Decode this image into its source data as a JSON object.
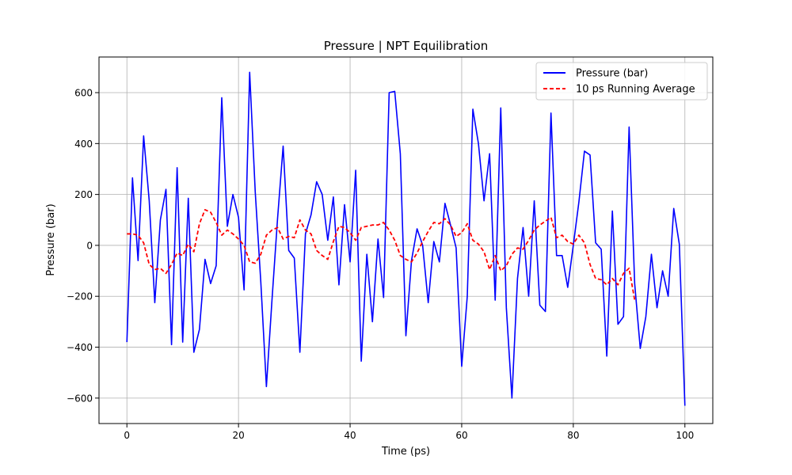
{
  "chart_data": {
    "type": "line",
    "title": "Pressure | NPT Equilibration",
    "xlabel": "Time (ps)",
    "ylabel": "Pressure (bar)",
    "xlim": [
      -5,
      105
    ],
    "ylim": [
      -700,
      740
    ],
    "xticks": [
      0,
      20,
      40,
      60,
      80,
      100
    ],
    "xtick_labels": [
      "0",
      "20",
      "40",
      "60",
      "80",
      "100"
    ],
    "yticks": [
      -600,
      -400,
      -200,
      0,
      200,
      400,
      600
    ],
    "ytick_labels": [
      "−600",
      "−400",
      "−200",
      "0",
      "200",
      "400",
      "600"
    ],
    "grid": true,
    "legend": {
      "placement": "top-right",
      "entries": [
        "Pressure (bar)",
        "10 ps Running Average"
      ]
    },
    "series": [
      {
        "name": "Pressure (bar)",
        "color": "#0000ff",
        "style": "solid",
        "x": [
          0,
          1,
          2,
          3,
          4,
          5,
          6,
          7,
          8,
          9,
          10,
          11,
          12,
          13,
          14,
          15,
          16,
          17,
          18,
          19,
          20,
          21,
          22,
          23,
          24,
          25,
          26,
          27,
          28,
          29,
          30,
          31,
          32,
          33,
          34,
          35,
          36,
          37,
          38,
          39,
          40,
          41,
          42,
          43,
          44,
          45,
          46,
          47,
          48,
          49,
          50,
          51,
          52,
          53,
          54,
          55,
          56,
          57,
          58,
          59,
          60,
          61,
          62,
          63,
          64,
          65,
          66,
          67,
          68,
          69,
          70,
          71,
          72,
          73,
          74,
          75,
          76,
          77,
          78,
          79,
          80,
          81,
          82,
          83,
          84,
          85,
          86,
          87,
          88,
          89,
          90,
          91,
          92,
          93,
          94,
          95,
          96,
          97,
          98,
          99,
          100
        ],
        "values": [
          -380,
          265,
          -60,
          430,
          175,
          -225,
          100,
          220,
          -390,
          305,
          -380,
          185,
          -420,
          -330,
          -55,
          -150,
          -80,
          580,
          75,
          200,
          110,
          -175,
          680,
          210,
          -145,
          -555,
          -215,
          105,
          390,
          -20,
          -50,
          -420,
          45,
          120,
          250,
          200,
          20,
          190,
          -155,
          160,
          -65,
          295,
          -455,
          -35,
          -300,
          25,
          -205,
          600,
          605,
          360,
          -355,
          -60,
          65,
          0,
          -225,
          15,
          -65,
          165,
          80,
          -10,
          -475,
          -200,
          535,
          400,
          175,
          360,
          -215,
          540,
          -245,
          -600,
          -130,
          70,
          -200,
          175,
          -235,
          -260,
          520,
          -40,
          -40,
          -165,
          0,
          170,
          370,
          355,
          10,
          -15,
          -435,
          135,
          -310,
          -280,
          465,
          -150,
          -405,
          -280,
          -35,
          -245,
          -100,
          -200,
          145,
          5,
          -630
        ]
      },
      {
        "name": "10 ps Running Average",
        "color": "#ff0000",
        "style": "dashed",
        "x": [
          0,
          1,
          2,
          3,
          4,
          5,
          6,
          7,
          8,
          9,
          10,
          11,
          12,
          13,
          14,
          15,
          16,
          17,
          18,
          19,
          20,
          21,
          22,
          23,
          24,
          25,
          26,
          27,
          28,
          29,
          30,
          31,
          32,
          33,
          34,
          35,
          36,
          37,
          38,
          39,
          40,
          41,
          42,
          43,
          44,
          45,
          46,
          47,
          48,
          49,
          50,
          51,
          52,
          53,
          54,
          55,
          56,
          57,
          58,
          59,
          60,
          61,
          62,
          63,
          64,
          65,
          66,
          67,
          68,
          69,
          70,
          71,
          72,
          73,
          74,
          75,
          76,
          77,
          78,
          79,
          80,
          81,
          82,
          83,
          84,
          85,
          86,
          87,
          88,
          89,
          90,
          91
        ],
        "values": [
          45,
          45,
          40,
          10,
          -75,
          -95,
          -90,
          -110,
          -75,
          -30,
          -40,
          5,
          -25,
          85,
          140,
          130,
          90,
          40,
          60,
          45,
          25,
          0,
          -65,
          -70,
          -35,
          40,
          60,
          70,
          25,
          35,
          30,
          100,
          60,
          45,
          -20,
          -40,
          -55,
          15,
          75,
          70,
          50,
          20,
          70,
          75,
          80,
          80,
          90,
          60,
          20,
          -40,
          -55,
          -65,
          -30,
          15,
          55,
          90,
          85,
          105,
          80,
          35,
          50,
          85,
          20,
          5,
          -25,
          -95,
          -40,
          -100,
          -80,
          -35,
          -10,
          -15,
          20,
          60,
          80,
          95,
          110,
          30,
          40,
          15,
          5,
          40,
          10,
          -75,
          -130,
          -135,
          -155,
          -130,
          -155,
          -110,
          -90,
          -215
        ]
      }
    ]
  }
}
